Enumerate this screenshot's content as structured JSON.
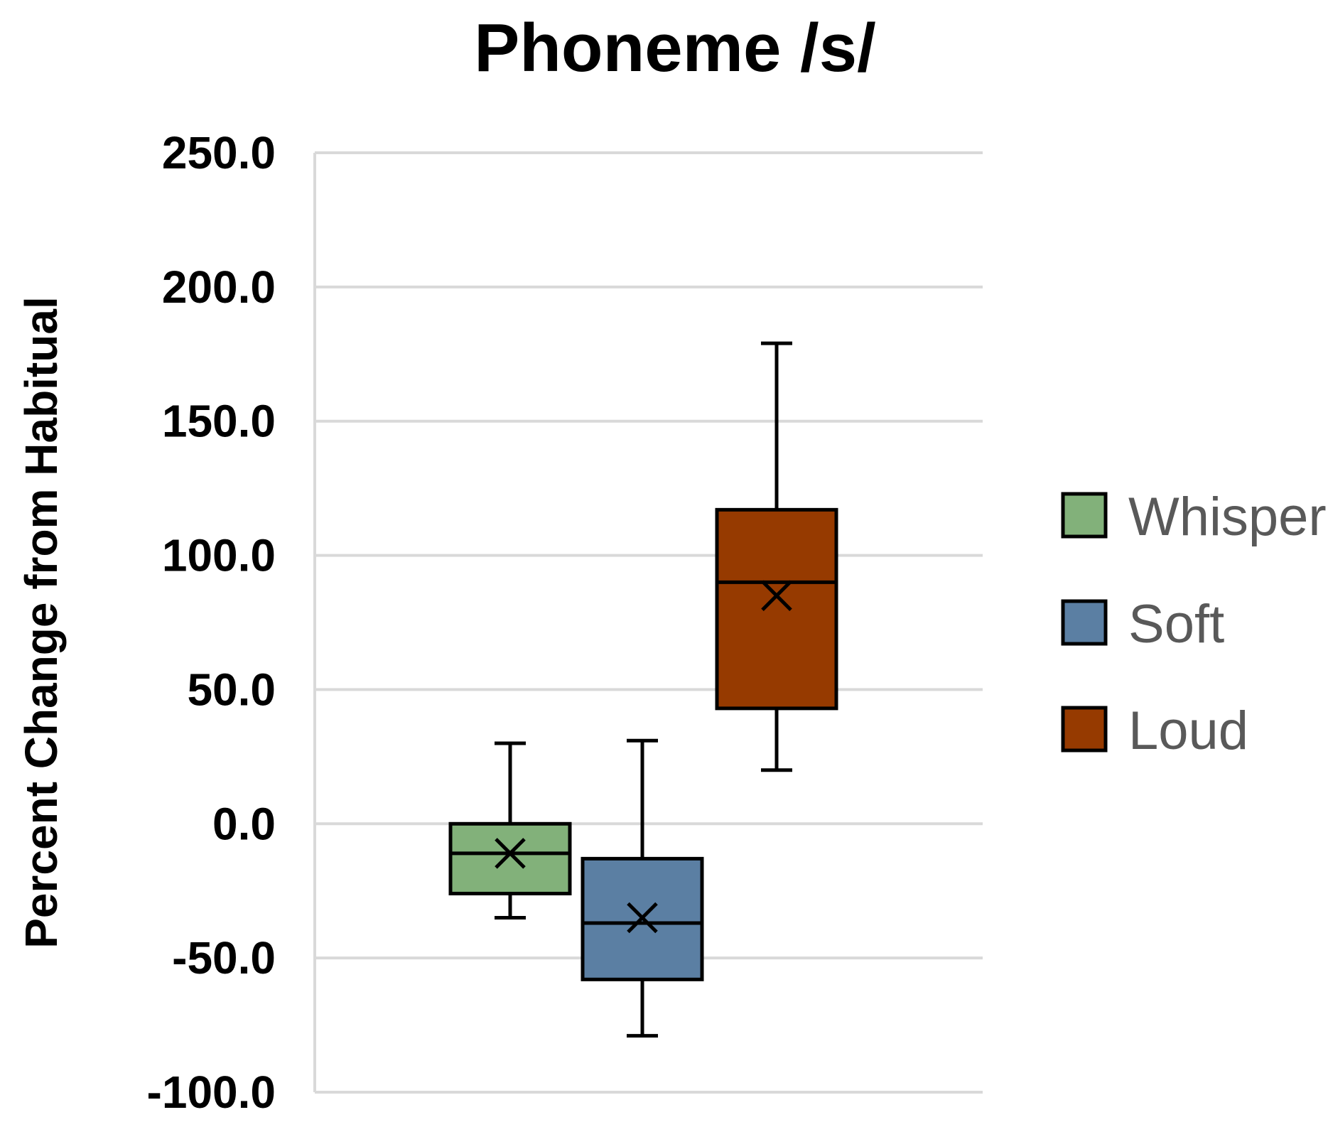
{
  "chart_data": {
    "type": "box",
    "title": "Phoneme /s/",
    "xlabel": "",
    "ylabel": "Percent Change from Habitual",
    "ylim": [
      -100,
      250
    ],
    "yticks": [
      "-100.0",
      "-50.0",
      "0.0",
      "50.0",
      "100.0",
      "150.0",
      "200.0",
      "250.0"
    ],
    "ytick_values": [
      -100,
      -50,
      0,
      50,
      100,
      150,
      200,
      250
    ],
    "grid": true,
    "legend_position": "right",
    "series": [
      {
        "name": "Whisper",
        "color": "#82b17a",
        "whisker_low": -35,
        "q1": -26,
        "median": -11,
        "q3": 0,
        "whisker_high": 30,
        "mean": -11
      },
      {
        "name": "Soft",
        "color": "#5b7fa3",
        "whisker_low": -79,
        "q1": -58,
        "median": -37,
        "q3": -13,
        "whisker_high": 31,
        "mean": -35
      },
      {
        "name": "Loud",
        "color": "#963a00",
        "whisker_low": 20,
        "q1": 43,
        "median": 90,
        "q3": 117,
        "whisker_high": 179,
        "mean": 85
      }
    ]
  }
}
